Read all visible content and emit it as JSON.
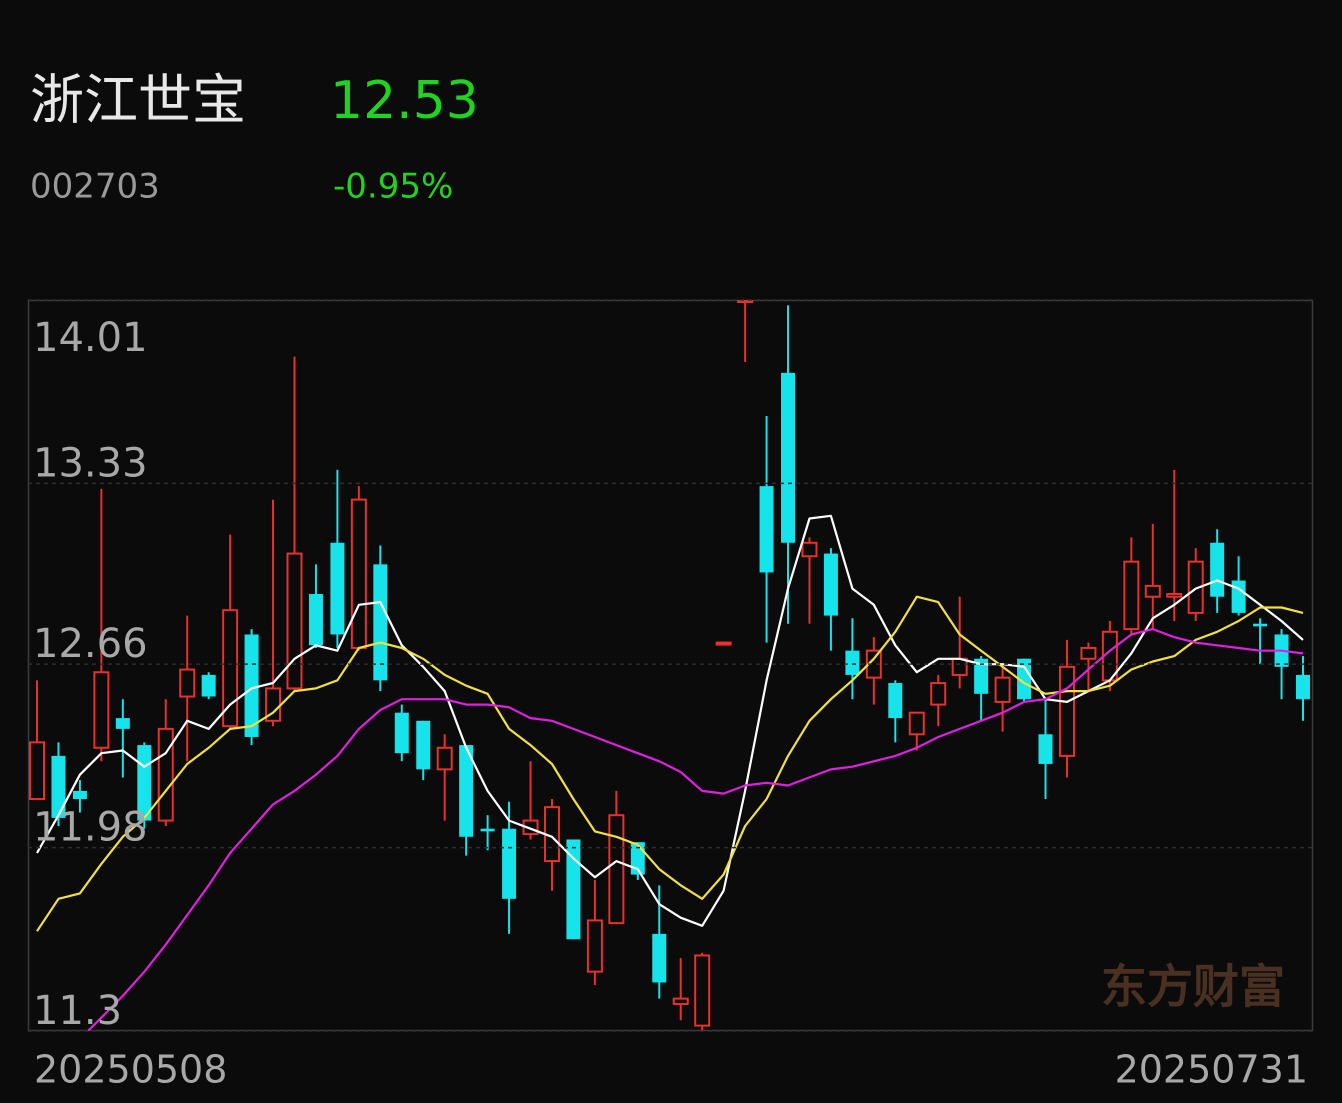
{
  "header": {
    "name": "浙江世宝",
    "price": "12.53",
    "code": "002703",
    "change": "-0.95%"
  },
  "chart_data": {
    "type": "candlestick",
    "watermark": "东方财富",
    "categories": [
      "20250508",
      null,
      null,
      null,
      null,
      null,
      null,
      null,
      null,
      null,
      null,
      null,
      null,
      null,
      null,
      null,
      null,
      null,
      null,
      null,
      null,
      null,
      null,
      null,
      null,
      null,
      null,
      null,
      null,
      null,
      null,
      null,
      null,
      null,
      null,
      null,
      null,
      null,
      null,
      null,
      null,
      null,
      null,
      null,
      null,
      null,
      null,
      null,
      null,
      null,
      null,
      null,
      null,
      null,
      null,
      null,
      null,
      null,
      null,
      "20250731"
    ],
    "open": [
      12.16,
      12.32,
      12.19,
      12.35,
      12.46,
      12.36,
      12.08,
      12.54,
      12.62,
      12.43,
      12.77,
      12.45,
      12.57,
      12.92,
      13.11,
      12.72,
      13.03,
      12.48,
      12.45,
      12.27,
      12.36,
      12.05,
      12.05,
      12.03,
      11.93,
      12.01,
      11.52,
      11.7,
      12.0,
      11.66,
      11.4,
      11.32,
      12.74,
      14.01,
      13.32,
      13.74,
      13.06,
      13.07,
      12.71,
      12.61,
      12.59,
      12.4,
      12.51,
      12.62,
      12.68,
      12.52,
      12.68,
      12.4,
      12.32,
      12.68,
      12.6,
      12.79,
      12.91,
      12.91,
      12.85,
      13.11,
      12.97,
      12.81,
      12.77,
      12.62
    ],
    "high": [
      12.6,
      12.37,
      12.23,
      13.31,
      12.53,
      12.37,
      12.53,
      12.84,
      12.63,
      13.14,
      12.79,
      13.27,
      13.8,
      13.03,
      13.38,
      13.32,
      13.1,
      12.51,
      12.45,
      12.4,
      12.36,
      12.1,
      12.15,
      12.3,
      12.16,
      12.01,
      11.86,
      12.19,
      12.0,
      11.84,
      11.57,
      11.59,
      12.74,
      14.01,
      13.58,
      13.99,
      13.13,
      13.09,
      12.83,
      12.76,
      12.6,
      12.48,
      12.62,
      12.91,
      12.69,
      12.66,
      12.68,
      12.53,
      12.75,
      12.74,
      12.82,
      13.13,
      13.18,
      13.38,
      13.09,
      13.16,
      13.06,
      12.83,
      12.79,
      12.69
    ],
    "low": [
      12.16,
      12.06,
      12.11,
      12.3,
      12.24,
      12.05,
      12.06,
      12.3,
      12.53,
      12.42,
      12.36,
      12.43,
      12.56,
      12.72,
      12.72,
      12.71,
      12.56,
      12.3,
      12.23,
      12.08,
      11.95,
      11.97,
      11.66,
      12.01,
      11.82,
      11.64,
      11.47,
      11.7,
      11.86,
      11.42,
      11.34,
      11.3,
      12.74,
      13.78,
      12.74,
      12.81,
      12.81,
      12.71,
      12.53,
      12.51,
      12.37,
      12.34,
      12.43,
      12.57,
      12.45,
      12.41,
      12.52,
      12.16,
      12.24,
      12.56,
      12.56,
      12.77,
      12.79,
      12.82,
      12.82,
      12.85,
      12.84,
      12.66,
      12.53,
      12.45
    ],
    "close": [
      12.37,
      12.09,
      12.16,
      12.63,
      12.42,
      12.08,
      12.42,
      12.64,
      12.54,
      12.86,
      12.39,
      12.57,
      13.07,
      12.73,
      12.77,
      13.27,
      12.6,
      12.33,
      12.27,
      12.35,
      12.02,
      12.04,
      11.79,
      12.08,
      12.13,
      11.64,
      11.71,
      12.1,
      11.88,
      11.48,
      11.42,
      11.58,
      12.74,
      14.01,
      13.0,
      13.11,
      13.11,
      12.84,
      12.62,
      12.71,
      12.46,
      12.48,
      12.59,
      12.68,
      12.55,
      12.61,
      12.53,
      12.29,
      12.65,
      12.72,
      12.78,
      13.04,
      12.95,
      12.92,
      13.04,
      12.91,
      12.85,
      12.8,
      12.65,
      12.53
    ],
    "up_color": "#e8302c",
    "down_color": "#16e3ea",
    "series": [
      {
        "color": "#ffffff",
        "values": [
          11.96,
          12.1,
          12.25,
          12.33,
          12.34,
          12.28,
          12.33,
          12.45,
          12.42,
          12.51,
          12.57,
          12.59,
          12.68,
          12.73,
          12.71,
          12.88,
          12.89,
          12.73,
          12.65,
          12.56,
          12.35,
          12.19,
          12.08,
          12.05,
          12.02,
          11.94,
          11.87,
          11.93,
          11.9,
          11.77,
          11.72,
          11.69,
          11.82,
          12.19,
          12.6,
          12.94,
          13.2,
          13.21,
          12.94,
          12.88,
          12.73,
          12.63,
          12.68,
          12.68,
          12.66,
          12.66,
          12.65,
          12.53,
          12.52,
          12.56,
          12.6,
          12.7,
          12.83,
          12.88,
          12.94,
          12.97,
          12.94,
          12.88,
          12.82,
          12.75
        ]
      },
      {
        "color": "#f0e040",
        "values": [
          11.67,
          11.79,
          11.81,
          11.92,
          12.02,
          12.09,
          12.19,
          12.29,
          12.35,
          12.42,
          12.43,
          12.48,
          12.56,
          12.57,
          12.6,
          12.72,
          12.74,
          12.72,
          12.68,
          12.62,
          12.58,
          12.55,
          12.42,
          12.36,
          12.29,
          12.16,
          12.04,
          12.02,
          11.99,
          11.9,
          11.84,
          11.79,
          11.88,
          12.06,
          12.16,
          12.32,
          12.45,
          12.53,
          12.6,
          12.68,
          12.78,
          12.91,
          12.89,
          12.77,
          12.71,
          12.65,
          12.59,
          12.55,
          12.56,
          12.56,
          12.58,
          12.64,
          12.67,
          12.69,
          12.75,
          12.78,
          12.82,
          12.87,
          12.87,
          12.85
        ]
      },
      {
        "color": "#e020e0",
        "values": [
          null,
          null,
          11.27,
          11.35,
          11.43,
          11.52,
          11.62,
          11.73,
          11.84,
          11.96,
          12.05,
          12.14,
          12.19,
          12.25,
          12.32,
          12.42,
          12.49,
          12.53,
          12.53,
          12.53,
          12.51,
          12.51,
          12.5,
          12.46,
          12.45,
          12.42,
          12.39,
          12.36,
          12.33,
          12.3,
          12.26,
          12.19,
          12.18,
          12.21,
          12.22,
          12.21,
          12.24,
          12.27,
          12.28,
          12.3,
          12.32,
          12.35,
          12.39,
          12.42,
          12.45,
          12.48,
          12.52,
          12.53,
          12.57,
          12.64,
          12.71,
          12.77,
          12.79,
          12.76,
          12.74,
          12.73,
          12.72,
          12.71,
          12.71,
          12.7
        ]
      }
    ],
    "ylim": [
      11.3,
      14.01
    ],
    "yticks": [
      14.01,
      13.33,
      12.66,
      11.98,
      11.3
    ],
    "grid": true
  }
}
